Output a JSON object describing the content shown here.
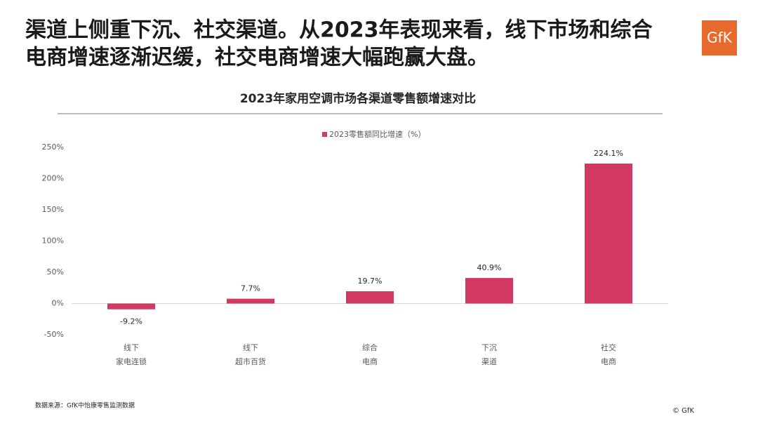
{
  "slide": {
    "title_lines": [
      "渠道上侧重下沉、社交渠道。从2023年表现来看，线下市场和综合",
      "电商增速逐渐迟缓，社交电商增速大幅跑赢大盘。"
    ],
    "logo": "GfK",
    "source": "数据来源：GfK中怡康零售监测数据",
    "copyright": "© GfK"
  },
  "chart_data": {
    "type": "bar",
    "title": "2023年家用空调市场各渠道零售额增速对比",
    "categories": [
      [
        "线下",
        "家电连锁"
      ],
      [
        "线下",
        "超市百货"
      ],
      [
        "综合",
        "电商"
      ],
      [
        "下沉",
        "渠道"
      ],
      [
        "社交",
        "电商"
      ]
    ],
    "series": [
      {
        "name": "2023零售额同比增速（%）",
        "color": "#d13862",
        "values": [
          -9.2,
          7.7,
          19.7,
          40.9,
          224.1
        ],
        "value_labels": [
          "-9.2%",
          "7.7%",
          "19.7%",
          "40.9%",
          "224.1%"
        ]
      }
    ],
    "ylim": [
      -50,
      250
    ],
    "yticks": [
      {
        "value": -50,
        "label": "-50%"
      },
      {
        "value": 0,
        "label": "0%"
      },
      {
        "value": 50,
        "label": "50%"
      },
      {
        "value": 100,
        "label": "100%"
      },
      {
        "value": 150,
        "label": "150%"
      },
      {
        "value": 200,
        "label": "200%"
      },
      {
        "value": 250,
        "label": "250%"
      }
    ],
    "grid": false
  }
}
